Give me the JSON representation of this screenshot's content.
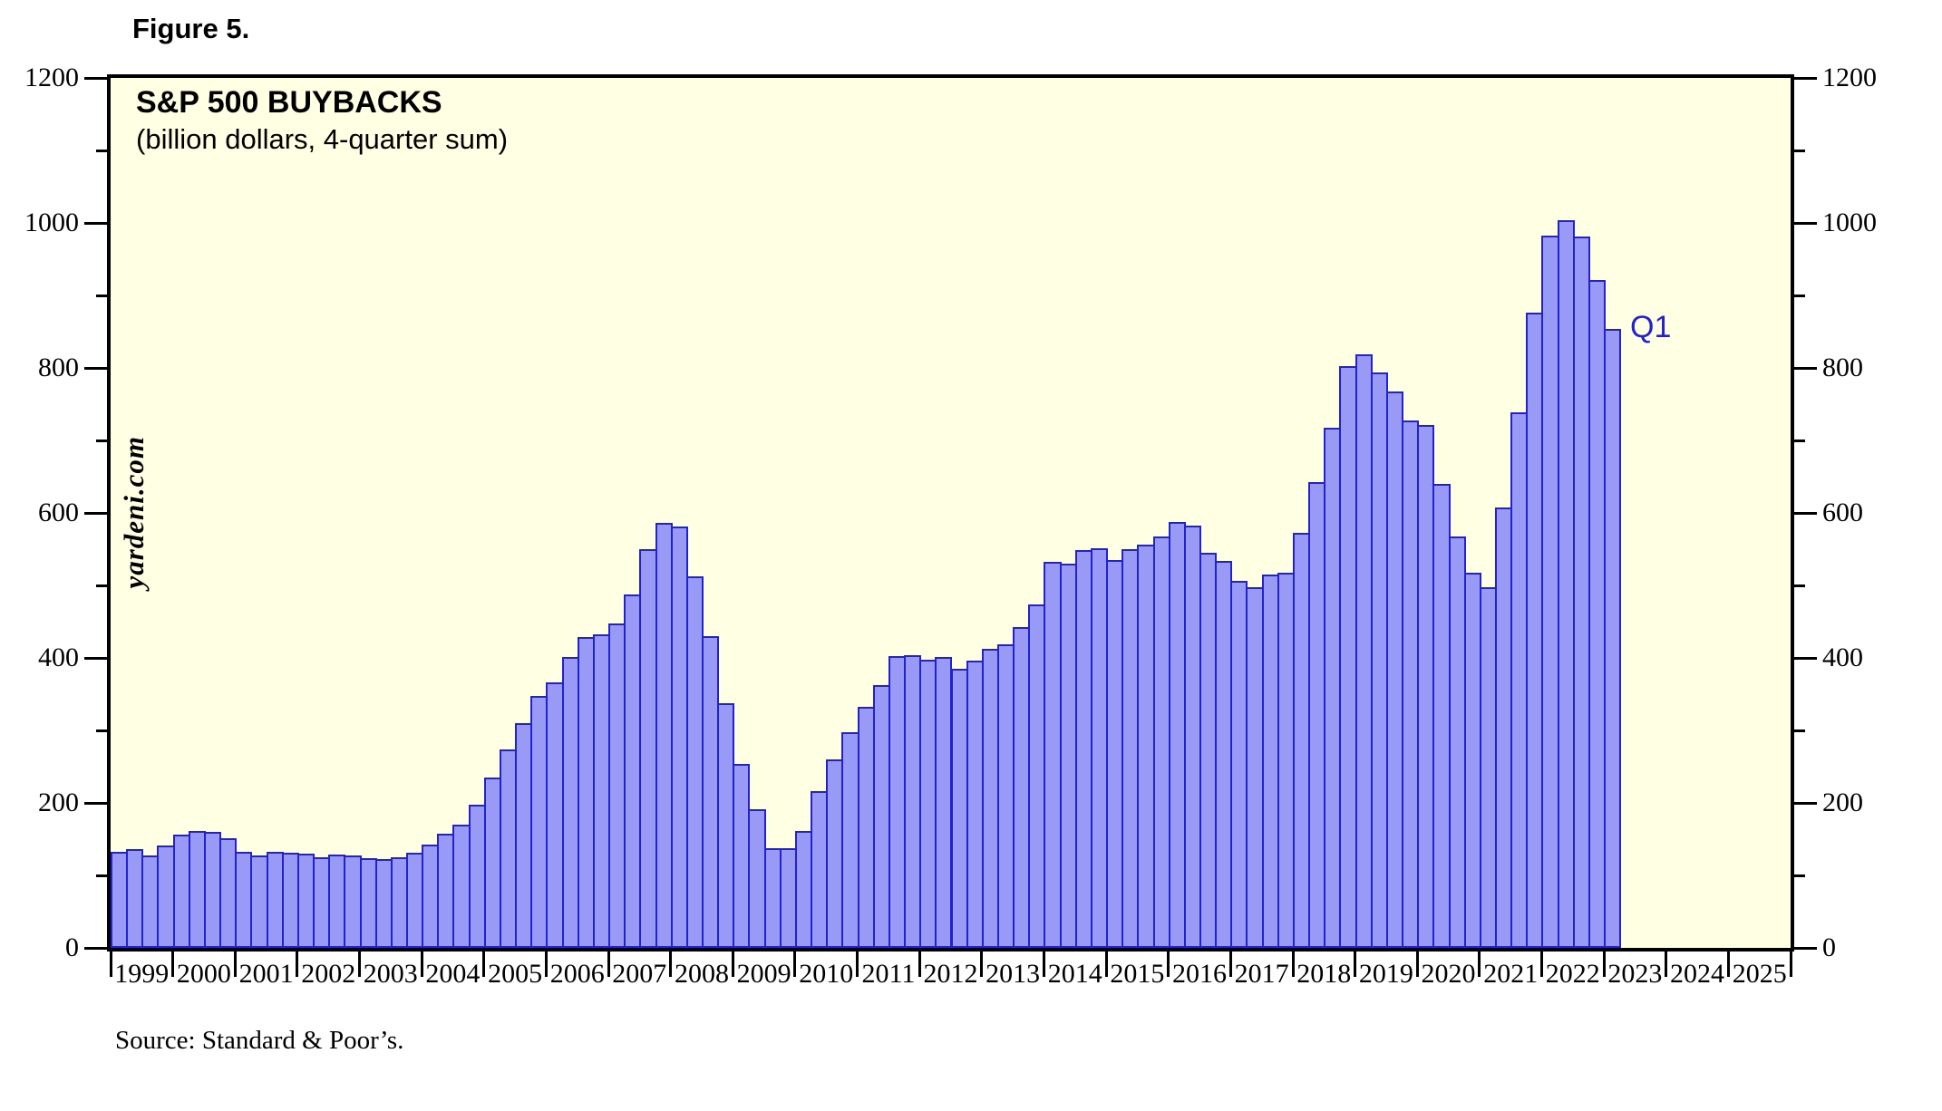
{
  "chart_data": {
    "type": "bar",
    "figure_label": "Figure 5.",
    "title": "S&P 500 BUYBACKS",
    "subtitle": "(billion dollars, 4-quarter sum)",
    "watermark": "yardeni.com",
    "source": "Source: Standard & Poor’s.",
    "last_point_label": "Q1",
    "ylabel": "",
    "xlabel": "",
    "ylim": [
      0,
      1200
    ],
    "y_major_ticks": [
      0,
      200,
      400,
      600,
      800,
      1000,
      1200
    ],
    "y_minor_ticks": [
      100,
      300,
      500,
      700,
      900,
      1100
    ],
    "x_year_labels": [
      "1999",
      "2000",
      "2001",
      "2002",
      "2003",
      "2004",
      "2005",
      "2006",
      "2007",
      "2008",
      "2009",
      "2010",
      "2011",
      "2012",
      "2013",
      "2014",
      "2015",
      "2016",
      "2017",
      "2018",
      "2019",
      "2020",
      "2021",
      "2022",
      "2023",
      "2024",
      "2025"
    ],
    "x_axis_start_year": 1999,
    "x_axis_end_year": 2026,
    "series_start": "1999Q1",
    "series_frequency": "quarterly",
    "series_end": "2023Q1",
    "values": [
      133,
      136,
      127,
      141,
      156,
      161,
      160,
      151,
      133,
      128,
      133,
      131,
      130,
      125,
      129,
      127,
      124,
      122,
      125,
      131,
      143,
      158,
      170,
      197,
      235,
      274,
      310,
      347,
      366,
      401,
      429,
      432,
      447,
      488,
      550,
      586,
      581,
      513,
      430,
      337,
      254,
      191,
      137,
      137,
      161,
      216,
      260,
      298,
      333,
      363,
      403,
      404,
      398,
      401,
      385,
      396,
      412,
      419,
      443,
      474,
      533,
      530,
      549,
      551,
      535,
      550,
      556,
      568,
      587,
      582,
      545,
      534,
      506,
      497,
      515,
      518,
      572,
      643,
      717,
      802,
      819,
      794,
      767,
      727,
      721,
      640,
      568,
      518,
      497,
      607,
      739,
      876,
      982,
      1004,
      981,
      921,
      854
    ],
    "legend_position": "none",
    "grid": "off",
    "colors": {
      "page_bg": "#FFFFFF",
      "plot_bg": "#FFFFE4",
      "bar_fill": "#9999F6",
      "bar_border": "#2222CC",
      "axis": "#000000",
      "annotation": "#2222CC",
      "text": "#000000"
    }
  }
}
